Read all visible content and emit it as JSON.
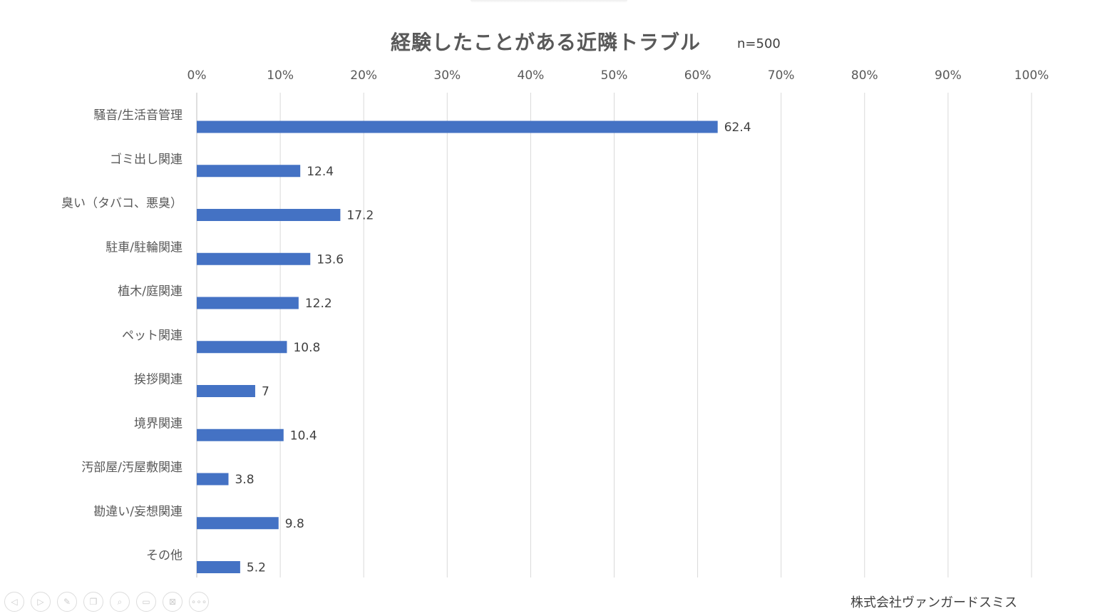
{
  "chart_data": {
    "type": "bar",
    "orientation": "horizontal",
    "title": "経験したことがある近隣トラブル",
    "subtitle": "n=500",
    "categories": [
      "騒音/生活音管理",
      "ゴミ出し関連",
      "臭い（タバコ、悪臭）",
      "駐車/駐輪関連",
      "植木/庭関連",
      "ペット関連",
      "挨拶関連",
      "境界関連",
      "汚部屋/汚屋敷関連",
      "勘違い/妄想関連",
      "その他"
    ],
    "values": [
      62.4,
      12.4,
      17.2,
      13.6,
      12.2,
      10.8,
      7,
      10.4,
      3.8,
      9.8,
      5.2
    ],
    "value_labels": [
      "62.4",
      "12.4",
      "17.2",
      "13.6",
      "12.2",
      "10.8",
      "7",
      "10.4",
      "3.8",
      "9.8",
      "5.2"
    ],
    "xlim": [
      0,
      100
    ],
    "xticks": [
      "0%",
      "10%",
      "20%",
      "30%",
      "40%",
      "50%",
      "60%",
      "70%",
      "80%",
      "90%",
      "100%"
    ],
    "xtick_position": "top",
    "grid": true,
    "bar_color": "#4472C4"
  },
  "footer": "株式会社ヴァンガードスミス",
  "toolbar": [
    "previous-icon",
    "next-icon",
    "pen-icon",
    "slides-icon",
    "zoom-icon",
    "subtitles-icon",
    "camera-off-icon",
    "more-icon"
  ],
  "toolbar_glyphs": [
    "◁",
    "▷",
    "✎",
    "❐",
    "⌕",
    "▭",
    "⊠",
    "∘∘∘"
  ]
}
